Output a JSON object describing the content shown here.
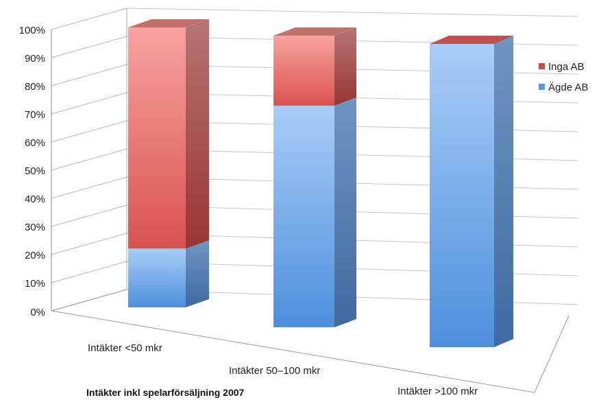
{
  "chart_data": {
    "type": "bar",
    "stacked": true,
    "three_d": true,
    "categories": [
      "Intäkter <50 mkr",
      "Intäkter 50–100 mkr",
      "Intäkter >100 mkr"
    ],
    "series": [
      {
        "name": "Ägde AB",
        "values": [
          21,
          76,
          100
        ],
        "color": "#5b9bd5"
      },
      {
        "name": "Inga AB",
        "values": [
          79,
          24,
          0
        ],
        "color": "#c0504d"
      }
    ],
    "y_ticks": [
      "0%",
      "10%",
      "20%",
      "30%",
      "40%",
      "50%",
      "60%",
      "70%",
      "80%",
      "90%",
      "100%"
    ],
    "ylim": [
      0,
      100
    ],
    "grid": true,
    "legend_position": "right",
    "legend": [
      "Inga AB",
      "Ägde AB"
    ],
    "title": "Intäkter inkl spelarförsäljning 2007"
  }
}
